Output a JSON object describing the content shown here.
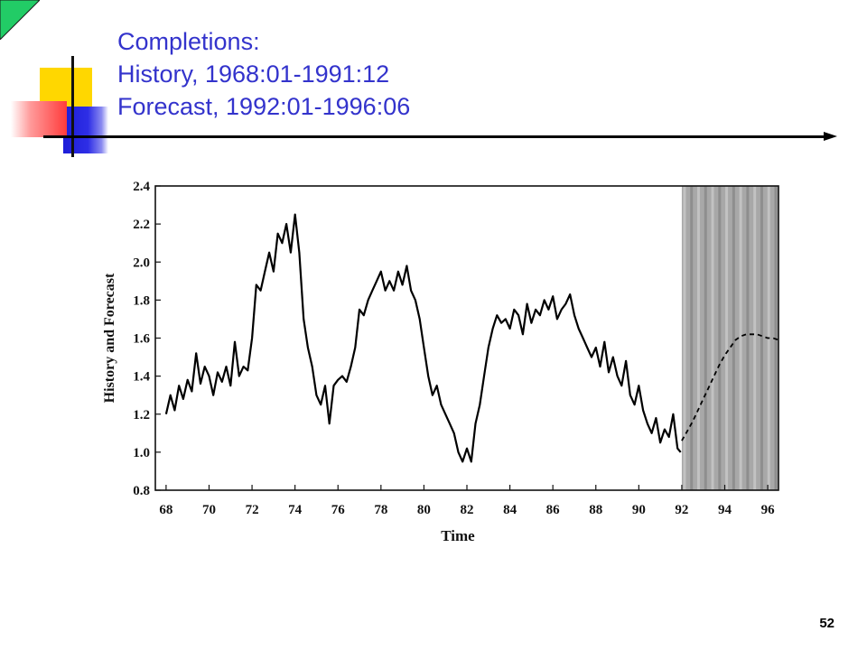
{
  "slide": {
    "title_lines": [
      "Completions:",
      "History, 1968:01-1991:12",
      "Forecast, 1992:01-1996:06"
    ],
    "page_number": "52",
    "colors": {
      "title": "#3333cc",
      "accent_yellow": "#ffd700",
      "accent_blue": "#2222dd",
      "accent_red": "#ff3b3b",
      "corner": "#22cc66"
    }
  },
  "chart_data": {
    "type": "line",
    "title": "",
    "xlabel": "Time",
    "ylabel": "History and Forecast",
    "xlim": [
      67.5,
      96.5
    ],
    "ylim": [
      0.8,
      2.4
    ],
    "x_ticks": [
      68,
      70,
      72,
      74,
      76,
      78,
      80,
      82,
      84,
      86,
      88,
      90,
      92,
      94,
      96
    ],
    "x_tick_labels": [
      "68",
      "70",
      "72",
      "74",
      "76",
      "78",
      "80",
      "82",
      "84",
      "86",
      "88",
      "90",
      "92",
      "94",
      "96"
    ],
    "y_ticks": [
      0.8,
      1.0,
      1.2,
      1.4,
      1.6,
      1.8,
      2.0,
      2.2,
      2.4
    ],
    "y_tick_labels": [
      "0.8",
      "1.0",
      "1.2",
      "1.4",
      "1.6",
      "1.8",
      "2.0",
      "2.2",
      "2.4"
    ],
    "forecast_region": [
      92.0,
      96.5
    ],
    "series": [
      {
        "style": "solid",
        "x": [
          68.0,
          68.2,
          68.4,
          68.6,
          68.8,
          69.0,
          69.2,
          69.4,
          69.6,
          69.8,
          70.0,
          70.2,
          70.4,
          70.6,
          70.8,
          71.0,
          71.2,
          71.4,
          71.6,
          71.8,
          72.0,
          72.2,
          72.4,
          72.6,
          72.8,
          73.0,
          73.2,
          73.4,
          73.6,
          73.8,
          74.0,
          74.2,
          74.4,
          74.6,
          74.8,
          75.0,
          75.2,
          75.4,
          75.6,
          75.8,
          76.0,
          76.2,
          76.4,
          76.6,
          76.8,
          77.0,
          77.2,
          77.4,
          77.6,
          77.8,
          78.0,
          78.2,
          78.4,
          78.6,
          78.8,
          79.0,
          79.2,
          79.4,
          79.6,
          79.8,
          80.0,
          80.2,
          80.4,
          80.6,
          80.8,
          81.0,
          81.2,
          81.4,
          81.6,
          81.8,
          82.0,
          82.2,
          82.4,
          82.6,
          82.8,
          83.0,
          83.2,
          83.4,
          83.6,
          83.8,
          84.0,
          84.2,
          84.4,
          84.6,
          84.8,
          85.0,
          85.2,
          85.4,
          85.6,
          85.8,
          86.0,
          86.2,
          86.4,
          86.6,
          86.8,
          87.0,
          87.2,
          87.4,
          87.6,
          87.8,
          88.0,
          88.2,
          88.4,
          88.6,
          88.8,
          89.0,
          89.2,
          89.4,
          89.6,
          89.8,
          90.0,
          90.2,
          90.4,
          90.6,
          90.8,
          91.0,
          91.2,
          91.4,
          91.6,
          91.8,
          91.95
        ],
        "values": [
          1.2,
          1.3,
          1.22,
          1.35,
          1.28,
          1.38,
          1.32,
          1.52,
          1.36,
          1.45,
          1.4,
          1.3,
          1.42,
          1.37,
          1.45,
          1.35,
          1.58,
          1.4,
          1.45,
          1.43,
          1.6,
          1.88,
          1.85,
          1.95,
          2.05,
          1.95,
          2.15,
          2.1,
          2.2,
          2.05,
          2.25,
          2.05,
          1.7,
          1.55,
          1.45,
          1.3,
          1.25,
          1.35,
          1.15,
          1.35,
          1.38,
          1.4,
          1.37,
          1.45,
          1.55,
          1.75,
          1.72,
          1.8,
          1.85,
          1.9,
          1.95,
          1.85,
          1.9,
          1.85,
          1.95,
          1.88,
          1.98,
          1.85,
          1.8,
          1.7,
          1.55,
          1.4,
          1.3,
          1.35,
          1.25,
          1.2,
          1.15,
          1.1,
          1.0,
          0.95,
          1.02,
          0.95,
          1.15,
          1.25,
          1.4,
          1.55,
          1.65,
          1.72,
          1.68,
          1.7,
          1.65,
          1.75,
          1.72,
          1.62,
          1.78,
          1.68,
          1.75,
          1.72,
          1.8,
          1.75,
          1.82,
          1.7,
          1.75,
          1.78,
          1.83,
          1.72,
          1.65,
          1.6,
          1.55,
          1.5,
          1.55,
          1.45,
          1.58,
          1.42,
          1.5,
          1.4,
          1.35,
          1.48,
          1.3,
          1.25,
          1.35,
          1.22,
          1.15,
          1.1,
          1.18,
          1.05,
          1.12,
          1.08,
          1.2,
          1.02,
          1.0
        ]
      },
      {
        "style": "dashed",
        "x": [
          92.0,
          92.25,
          92.5,
          92.75,
          93.0,
          93.25,
          93.5,
          93.75,
          94.0,
          94.25,
          94.5,
          94.75,
          95.0,
          95.25,
          95.5,
          95.75,
          96.0,
          96.25,
          96.5
        ],
        "values": [
          1.06,
          1.11,
          1.16,
          1.22,
          1.28,
          1.34,
          1.4,
          1.46,
          1.51,
          1.55,
          1.59,
          1.61,
          1.62,
          1.62,
          1.62,
          1.61,
          1.6,
          1.6,
          1.59
        ]
      }
    ]
  }
}
